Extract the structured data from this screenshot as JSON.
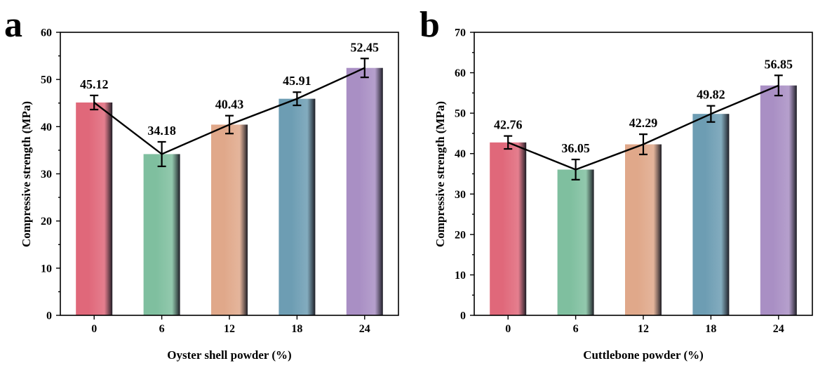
{
  "chart_data": [
    {
      "type": "bar",
      "panel_label": "a",
      "categories": [
        "0",
        "6",
        "12",
        "18",
        "24"
      ],
      "values": [
        45.12,
        34.18,
        40.43,
        45.91,
        52.45
      ],
      "errors": [
        1.5,
        2.6,
        1.9,
        1.4,
        2.0
      ],
      "data_labels": [
        "45.12",
        "34.18",
        "40.43",
        "45.91",
        "52.45"
      ],
      "xlabel": "Oyster shell powder (%)",
      "ylabel": "Compressive strength (MPa)",
      "ylim": [
        0,
        60
      ],
      "yticks": [
        0,
        10,
        20,
        30,
        40,
        50,
        60
      ],
      "trend_line": true,
      "grid": false
    },
    {
      "type": "bar",
      "panel_label": "b",
      "categories": [
        "0",
        "6",
        "12",
        "18",
        "24"
      ],
      "values": [
        42.76,
        36.05,
        42.29,
        49.82,
        56.85
      ],
      "errors": [
        1.6,
        2.5,
        2.5,
        2.0,
        2.5
      ],
      "data_labels": [
        "42.76",
        "36.05",
        "42.29",
        "49.82",
        "56.85"
      ],
      "xlabel": "Cuttlebone powder (%)",
      "ylabel": "Compressive strength (MPa)",
      "ylim": [
        0,
        70
      ],
      "yticks": [
        0,
        10,
        20,
        30,
        40,
        50,
        60,
        70
      ],
      "trend_line": true,
      "grid": false
    }
  ],
  "bar_colors": [
    "#e0687a",
    "#7fbf9f",
    "#e0a88a",
    "#6d9db3",
    "#a98fc4"
  ],
  "bar_shade": "#1c1c24"
}
